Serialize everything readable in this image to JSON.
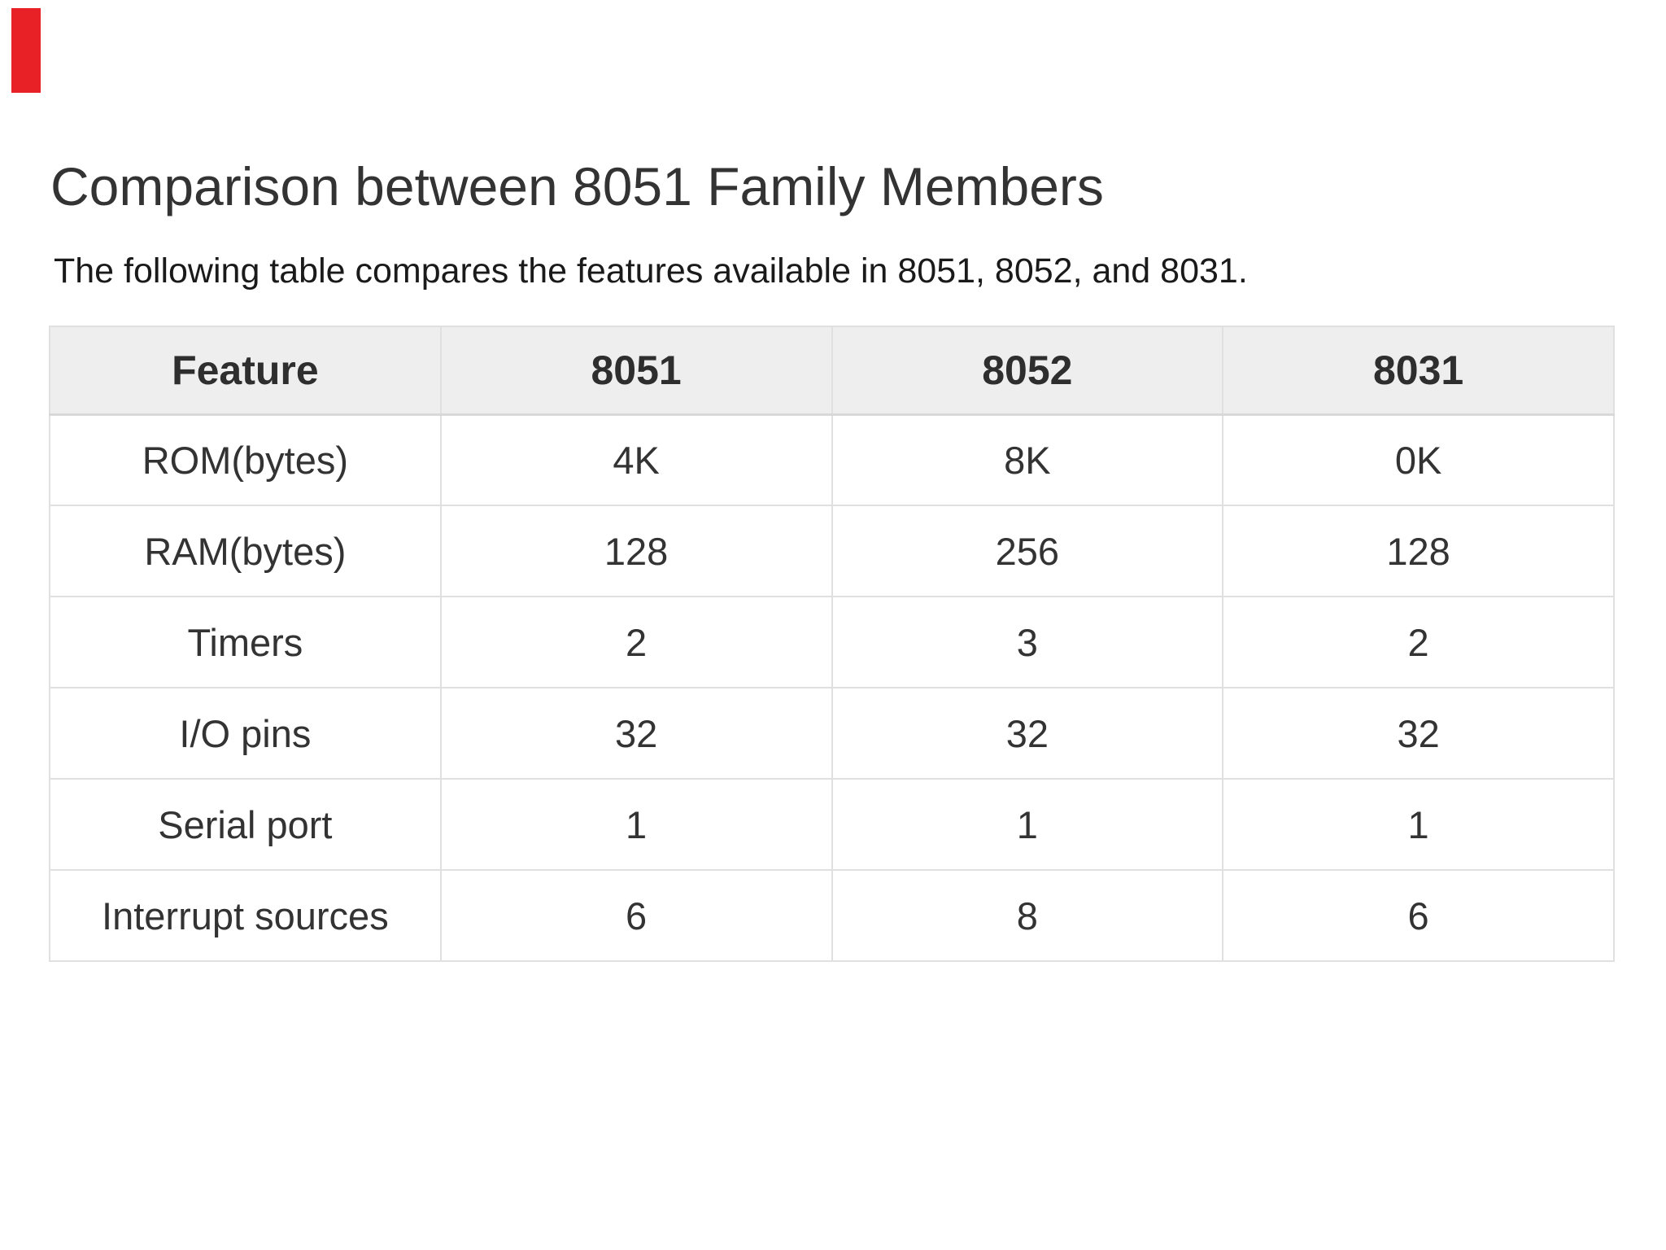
{
  "marker": {
    "color": "#e82127"
  },
  "heading": {
    "title": "Comparison between 8051 Family Members"
  },
  "intro": {
    "text": "The following table compares the features available in 8051, 8052, and 8031."
  },
  "colors": {
    "page_bg": "#ffffff",
    "header_row_bg": "#eeeeee",
    "table_border": "#e0e0e0",
    "title_text": "#333333",
    "body_text": "#333333",
    "marker_red": "#e82127"
  },
  "table": {
    "headers": [
      {
        "label": "Feature"
      },
      {
        "label": "8051"
      },
      {
        "label": "8052"
      },
      {
        "label": "8031"
      }
    ],
    "rows": [
      {
        "feature": "ROM(bytes)",
        "v1": "4K",
        "v2": "8K",
        "v3": "0K"
      },
      {
        "feature": "RAM(bytes)",
        "v1": "128",
        "v2": "256",
        "v3": "128"
      },
      {
        "feature": "Timers",
        "v1": "2",
        "v2": "3",
        "v3": "2"
      },
      {
        "feature": "I/O pins",
        "v1": "32",
        "v2": "32",
        "v3": "32"
      },
      {
        "feature": "Serial port",
        "v1": "1",
        "v2": "1",
        "v3": "1"
      },
      {
        "feature": "Interrupt sources",
        "v1": "6",
        "v2": "8",
        "v3": "6"
      }
    ]
  },
  "chart_data": {
    "type": "table",
    "title": "Comparison between 8051 Family Members",
    "columns": [
      "Feature",
      "8051",
      "8052",
      "8031"
    ],
    "rows": [
      [
        "ROM(bytes)",
        "4K",
        "8K",
        "0K"
      ],
      [
        "RAM(bytes)",
        "128",
        "256",
        "128"
      ],
      [
        "Timers",
        "2",
        "3",
        "2"
      ],
      [
        "I/O pins",
        "32",
        "32",
        "32"
      ],
      [
        "Serial port",
        "1",
        "1",
        "1"
      ],
      [
        "Interrupt sources",
        "6",
        "8",
        "6"
      ]
    ]
  }
}
